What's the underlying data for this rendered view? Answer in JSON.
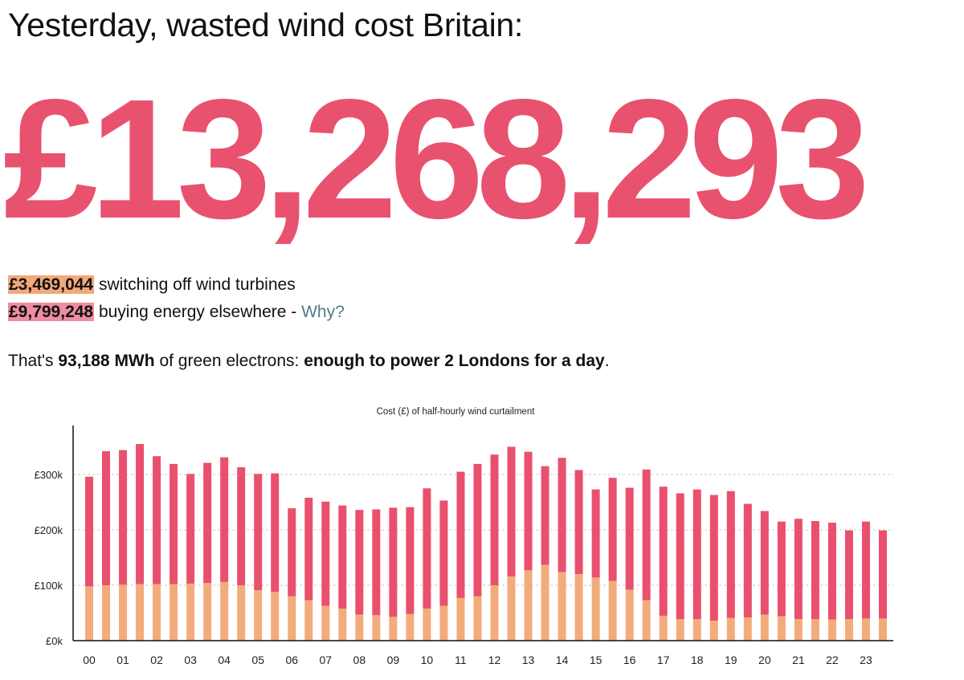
{
  "headline": "Yesterday, wasted wind cost Britain:",
  "total": "£13,268,293",
  "breakdown": {
    "turbines_amount": "£3,469,044",
    "turbines_label": "switching off wind turbines",
    "elsewhere_amount": "£9,799,248",
    "elsewhere_label": "buying energy elsewhere -",
    "why_link": "Why?"
  },
  "summary": {
    "prefix": "That's",
    "energy": "93,188 MWh",
    "middle": "of green electrons:",
    "equivalent": "enough to power 2 Londons for a day",
    "suffix": "."
  },
  "colors": {
    "accent": "#e8526e",
    "turbines": "#f2a87a",
    "elsewhere": "#ef8ca0",
    "link": "#4d7d85",
    "bar_turbines": "#f2ac7c",
    "bar_elsewhere": "#e9506d"
  },
  "chart_data": {
    "type": "bar",
    "stacked": true,
    "title": "Cost (£) of half-hourly wind curtailment",
    "ylim": [
      0,
      390000
    ],
    "yticks": [
      0,
      100000,
      200000,
      300000
    ],
    "ytick_labels": [
      "£0k",
      "£100k",
      "£200k",
      "£300k"
    ],
    "grid": true,
    "x_tick_labels": [
      "00",
      "01",
      "02",
      "03",
      "04",
      "05",
      "06",
      "07",
      "08",
      "09",
      "10",
      "11",
      "12",
      "13",
      "14",
      "15",
      "16",
      "17",
      "18",
      "19",
      "20",
      "21",
      "22",
      "23"
    ],
    "series": [
      {
        "name": "",
        "values": [
          98000,
          100000,
          101000,
          102000,
          102000,
          102000,
          103000,
          104000,
          106000,
          100000,
          91000,
          88000,
          80000,
          73000,
          63000,
          58000,
          47000,
          46000,
          43000,
          48000,
          58000,
          63000,
          77000,
          80000,
          100000,
          116000,
          127000,
          137000,
          124000,
          120000,
          114000,
          108000,
          92000,
          73000,
          45000,
          39000,
          39000,
          36000,
          41000,
          42000,
          47000,
          44000,
          39000,
          39000,
          38000,
          39000,
          40000,
          40000
        ]
      },
      {
        "name": "",
        "values": [
          198000,
          242000,
          243000,
          253000,
          231000,
          217000,
          198000,
          217000,
          225000,
          213000,
          210000,
          214000,
          159000,
          185000,
          188000,
          186000,
          189000,
          191000,
          197000,
          193000,
          217000,
          190000,
          228000,
          239000,
          236000,
          234000,
          214000,
          178000,
          206000,
          188000,
          159000,
          186000,
          184000,
          236000,
          233000,
          227000,
          234000,
          227000,
          229000,
          205000,
          187000,
          171000,
          181000,
          177000,
          175000,
          160000,
          175000,
          159000
        ]
      }
    ]
  }
}
